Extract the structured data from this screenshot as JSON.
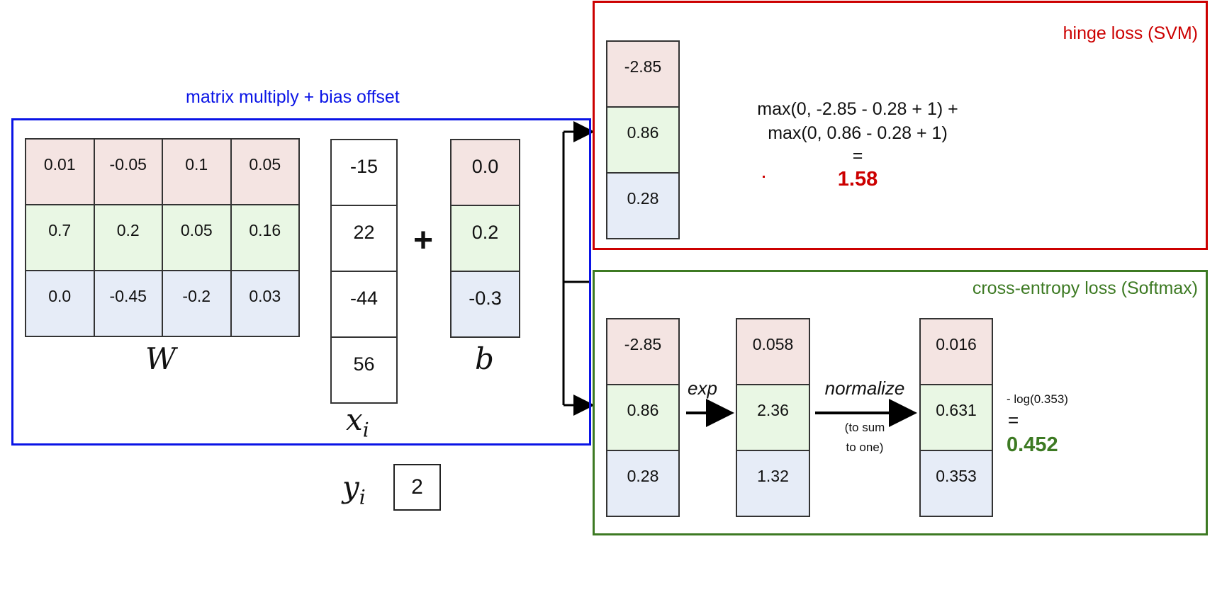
{
  "linear": {
    "title": "matrix multiply + bias offset",
    "W": [
      [
        "0.01",
        "-0.05",
        "0.1",
        "0.05"
      ],
      [
        "0.7",
        "0.2",
        "0.05",
        "0.16"
      ],
      [
        "0.0",
        "-0.45",
        "-0.2",
        "0.03"
      ]
    ],
    "x": [
      "-15",
      "22",
      "-44",
      "56"
    ],
    "b": [
      "0.0",
      "0.2",
      "-0.3"
    ],
    "plus": "+",
    "W_label": "W",
    "b_label": "b",
    "x_label": "x",
    "x_sub": "i",
    "y_label": "y",
    "y_sub": "i",
    "y_value": "2"
  },
  "svm": {
    "title": "hinge loss (SVM)",
    "scores": [
      "-2.85",
      "0.86",
      "0.28"
    ],
    "formula_line1": "max(0, -2.85 - 0.28 + 1) +",
    "formula_line2": "max(0, 0.86 - 0.28 + 1)",
    "equals": "=",
    "result": "1.58"
  },
  "softmax": {
    "title": "cross-entropy loss (Softmax)",
    "scores": [
      "-2.85",
      "0.86",
      "0.28"
    ],
    "exp_label": "exp",
    "exp_values": [
      "0.058",
      "2.36",
      "1.32"
    ],
    "normalize_label": "normalize",
    "normalize_note_1": "(to sum",
    "normalize_note_2": "to one)",
    "probs": [
      "0.016",
      "0.631",
      "0.353"
    ],
    "loss_expr": "- log(0.353)",
    "equals": "=",
    "result": "0.452"
  },
  "colors": {
    "blue": "#0a14e6",
    "red": "#cc0000",
    "green": "#3d7a23",
    "row_red": "#f4e4e2",
    "row_green": "#e9f7e4",
    "row_blue": "#e6ecf7"
  }
}
